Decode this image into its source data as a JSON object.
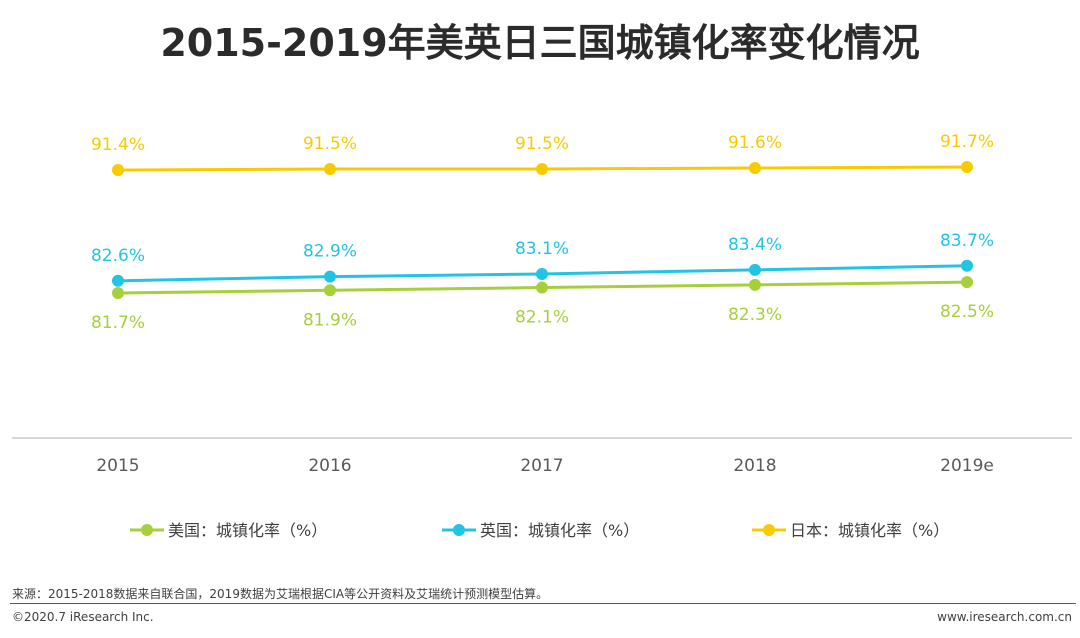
{
  "title": "2015-2019年美英日三国城镇化率变化情况",
  "chart_data": {
    "type": "line",
    "title": "2015-2019年美英日三国城镇化率变化情况",
    "categories": [
      "2015",
      "2016",
      "2017",
      "2018",
      "2019e"
    ],
    "series": [
      {
        "name": "美国：城镇化率（%）",
        "color": "#A7CF3C",
        "values": [
          81.7,
          81.9,
          82.1,
          82.3,
          82.5
        ],
        "labels": [
          "81.7%",
          "81.9%",
          "82.1%",
          "82.3%",
          "82.5%"
        ]
      },
      {
        "name": "英国：城镇化率（%）",
        "color": "#22C4E4",
        "values": [
          82.6,
          82.9,
          83.1,
          83.4,
          83.7
        ],
        "labels": [
          "82.6%",
          "82.9%",
          "83.1%",
          "83.4%",
          "83.7%"
        ]
      },
      {
        "name": "日本：城镇化率（%）",
        "color": "#F8CB00",
        "values": [
          91.4,
          91.5,
          91.5,
          91.6,
          91.7
        ],
        "labels": [
          "91.4%",
          "91.5%",
          "91.5%",
          "91.6%",
          "91.7%"
        ]
      }
    ],
    "legend_position": "bottom",
    "grid": false
  },
  "footer": {
    "source": "来源：2015-2018数据来自联合国，2019数据为艾瑞根据CIA等公开资料及艾瑞统计预测模型估算。",
    "copyright": "©2020.7 iResearch Inc.",
    "website": "www.iresearch.com.cn"
  }
}
